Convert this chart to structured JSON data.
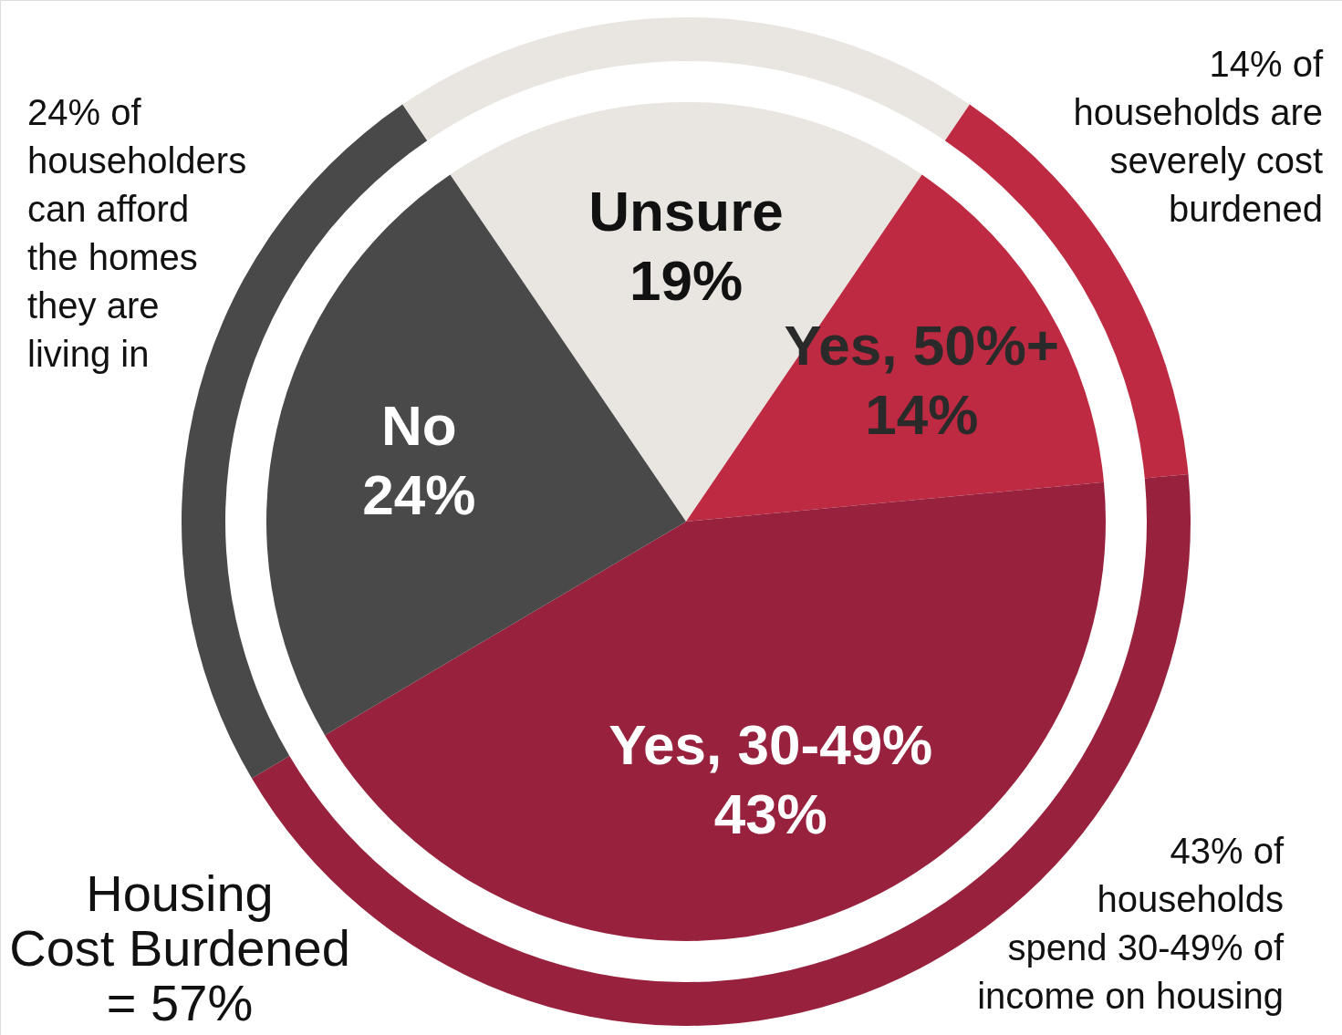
{
  "chart_data": {
    "type": "pie",
    "categories": [
      "Unsure",
      "Yes, 50%+",
      "Yes, 30-49%",
      "No"
    ],
    "value_labels": [
      "19%",
      "14%",
      "43%",
      "24%"
    ],
    "series": [
      {
        "type": "pie",
        "values": [
          19,
          14,
          43,
          24
        ],
        "colors": [
          "#e9e6e1",
          "#be2a41",
          "#98223d",
          "#494949"
        ]
      },
      {
        "type": "donut",
        "values": [
          19,
          14,
          43,
          24
        ],
        "colors": [
          "#e9e6e1",
          "#be2a41",
          "#98223d",
          "#494949"
        ]
      }
    ],
    "annotations": [
      "24% of\nhouseholders\ncan afford\nthe homes\nthey are\nliving in",
      "14% of\nhouseholds are\nseverely cost\nburdened",
      "43% of\nhouseholds\nspend 30-49% of\nincome on housing",
      "Housing\nCost Burdened\n= 57%"
    ]
  }
}
